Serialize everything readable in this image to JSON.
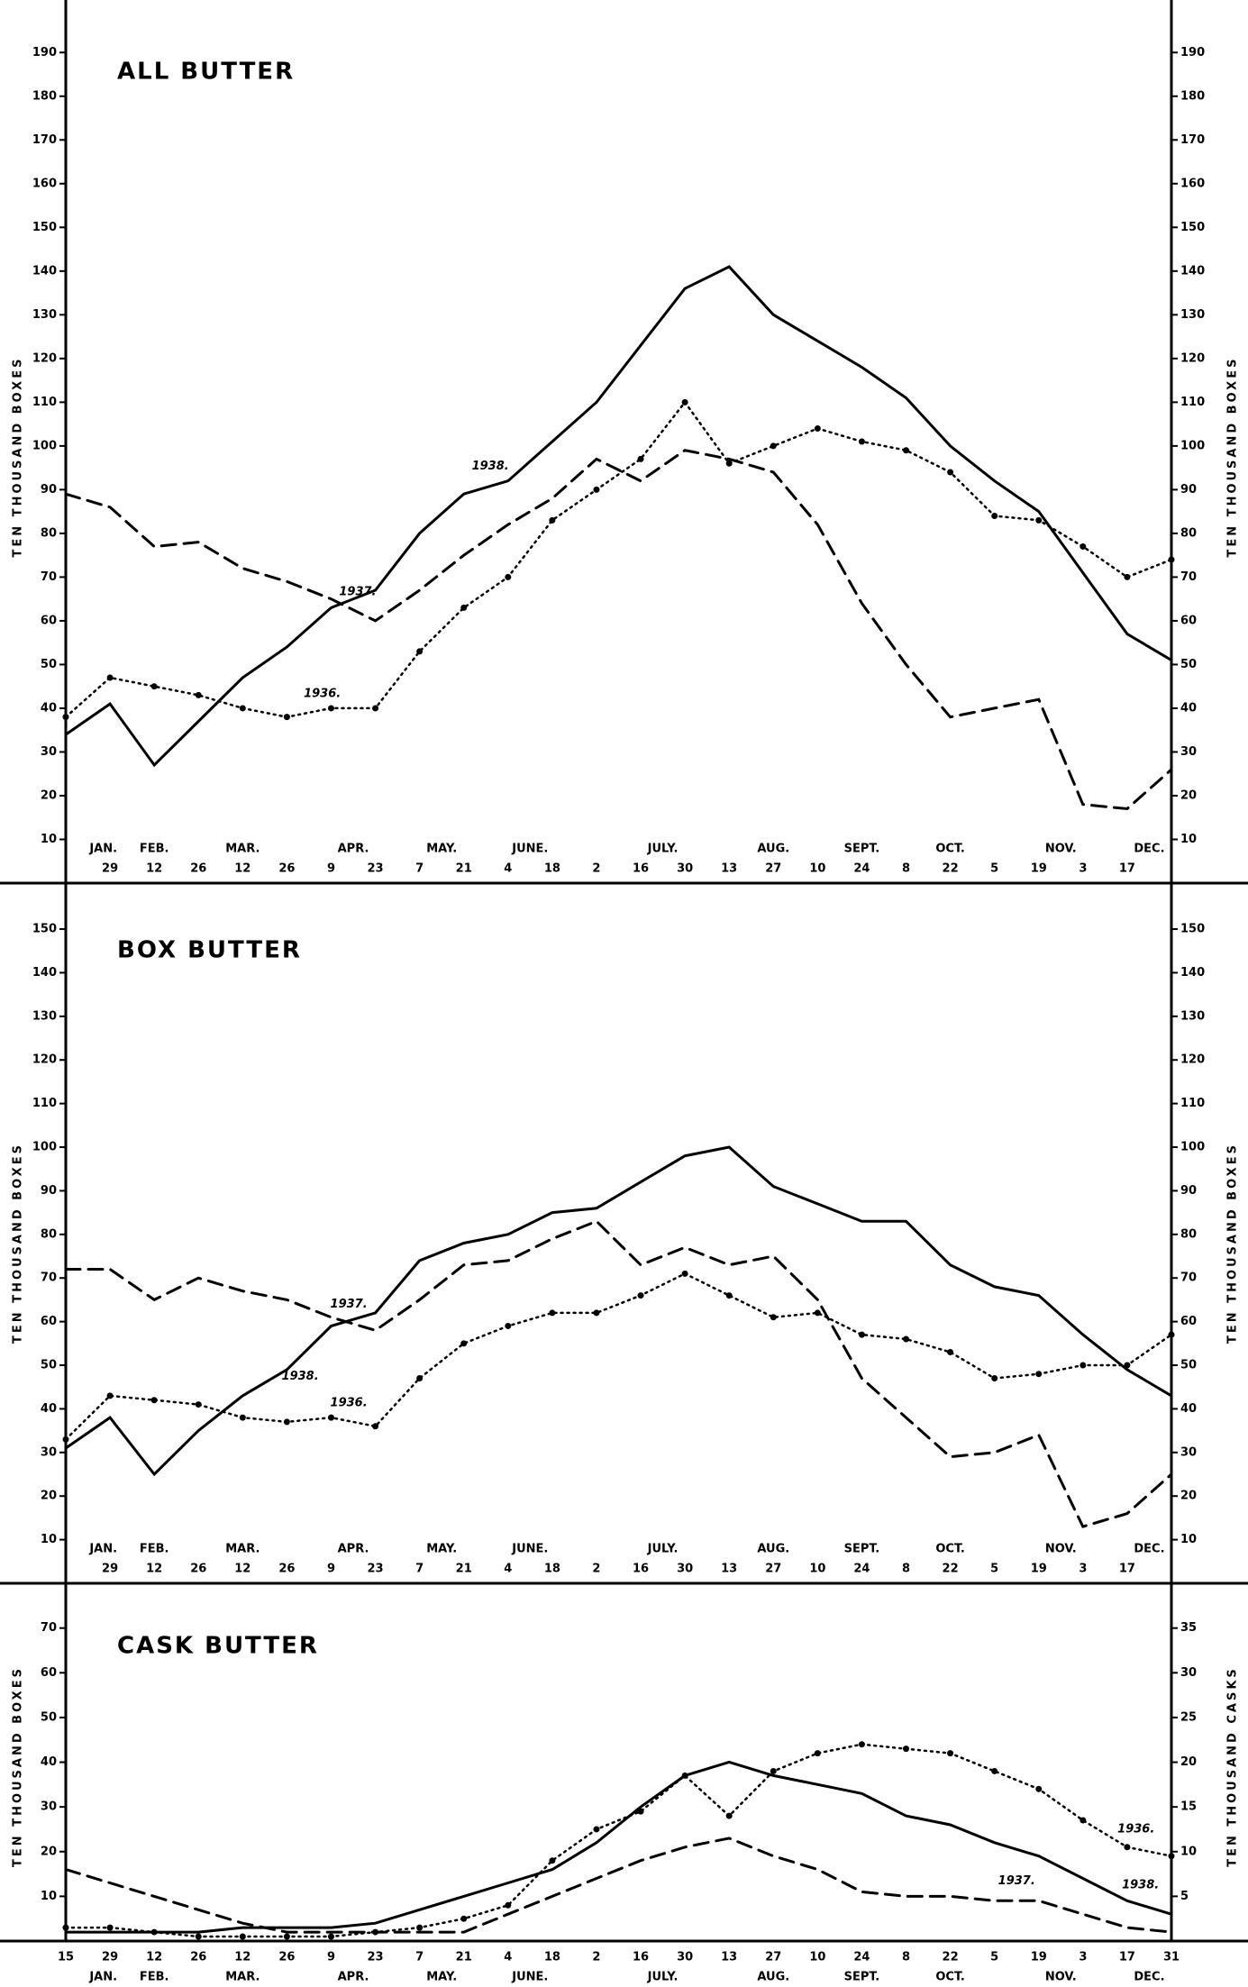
{
  "chart_data": [
    {
      "type": "line",
      "title": "ALL BUTTER",
      "ylabel": "TEN THOUSAND BOXES",
      "y2label": "TEN THOUSAND BOXES",
      "categories": [
        null,
        "29",
        "12",
        "26",
        "12",
        "26",
        "9",
        "23",
        "7",
        "21",
        "4",
        "18",
        "2",
        "16",
        "30",
        "13",
        "27",
        "10",
        "24",
        "8",
        "22",
        "5",
        "19",
        "3",
        "17",
        null
      ],
      "months": [
        "JAN.",
        "FEB.",
        "MAR.",
        "APR.",
        "MAY.",
        "JUNE.",
        "JULY.",
        "AUG.",
        "SEPT.",
        "OCT.",
        "NOV.",
        "DEC."
      ],
      "ylim": [
        0,
        195
      ],
      "yticks": [
        10,
        20,
        30,
        40,
        50,
        60,
        70,
        80,
        90,
        100,
        110,
        120,
        130,
        140,
        150,
        160,
        170,
        180,
        190
      ],
      "y2lim": [
        0,
        195
      ],
      "y2ticks": [
        10,
        20,
        30,
        40,
        50,
        60,
        70,
        80,
        90,
        100,
        110,
        120,
        130,
        140,
        150,
        160,
        170,
        180,
        190
      ],
      "series": [
        {
          "name": "1938.",
          "color": "#000000",
          "line_style": "solid",
          "values": [
            34,
            41,
            27,
            37,
            47,
            54,
            63,
            67,
            80,
            89,
            92,
            101,
            110,
            123,
            136,
            141,
            130,
            124,
            118,
            111,
            100,
            92,
            85,
            71,
            57,
            51
          ]
        },
        {
          "name": "1937.",
          "color": "#000000",
          "line_style": "dashed",
          "values": [
            89,
            86,
            77,
            78,
            72,
            69,
            65,
            60,
            67,
            75,
            82,
            88,
            97,
            92,
            99,
            97,
            94,
            82,
            64,
            50,
            38,
            40,
            42,
            18,
            17,
            26
          ]
        },
        {
          "name": "1936.",
          "color": "#000000",
          "line_style": "dotted",
          "values": [
            38,
            47,
            45,
            43,
            40,
            38,
            40,
            40,
            53,
            63,
            70,
            83,
            90,
            97,
            110,
            96,
            100,
            104,
            101,
            99,
            94,
            84,
            83,
            77,
            70,
            74
          ]
        }
      ]
    },
    {
      "type": "line",
      "title": "BOX BUTTER",
      "ylabel": "TEN THOUSAND BOXES",
      "y2label": "TEN THOUSAND BOXES",
      "categories": [
        null,
        "29",
        "12",
        "26",
        "12",
        "26",
        "9",
        "23",
        "7",
        "21",
        "4",
        "18",
        "2",
        "16",
        "30",
        "13",
        "27",
        "10",
        "24",
        "8",
        "22",
        "5",
        "19",
        "3",
        "17",
        null
      ],
      "months": [
        "JAN.",
        "FEB.",
        "MAR.",
        "APR.",
        "MAY.",
        "JUNE.",
        "JULY.",
        "AUG.",
        "SEPT.",
        "OCT.",
        "NOV.",
        "DEC."
      ],
      "ylim": [
        0,
        156
      ],
      "yticks": [
        10,
        20,
        30,
        40,
        50,
        60,
        70,
        80,
        90,
        100,
        110,
        120,
        130,
        140,
        150
      ],
      "y2lim": [
        0,
        156
      ],
      "y2ticks": [
        10,
        20,
        30,
        40,
        50,
        60,
        70,
        80,
        90,
        100,
        110,
        120,
        130,
        140,
        150
      ],
      "series": [
        {
          "name": "1938.",
          "color": "#000000",
          "line_style": "solid",
          "values": [
            31,
            38,
            25,
            35,
            43,
            49,
            59,
            62,
            74,
            78,
            80,
            85,
            86,
            92,
            98,
            100,
            91,
            87,
            83,
            83,
            73,
            68,
            66,
            57,
            49,
            43
          ]
        },
        {
          "name": "1937.",
          "color": "#000000",
          "line_style": "dashed",
          "values": [
            72,
            72,
            65,
            70,
            67,
            65,
            61,
            58,
            65,
            73,
            74,
            79,
            83,
            73,
            77,
            73,
            75,
            65,
            47,
            38,
            29,
            30,
            34,
            13,
            16,
            25
          ]
        },
        {
          "name": "1936.",
          "color": "#000000",
          "line_style": "dotted",
          "values": [
            33,
            43,
            42,
            41,
            38,
            37,
            38,
            36,
            47,
            55,
            59,
            62,
            62,
            66,
            71,
            66,
            61,
            62,
            57,
            56,
            53,
            47,
            48,
            50,
            50,
            57
          ]
        }
      ]
    },
    {
      "type": "line",
      "title": "CASK BUTTER",
      "ylabel": "TEN THOUSAND BOXES",
      "y2label": "TEN THOUSAND CASKS",
      "categories": [
        "15",
        "29",
        "12",
        "26",
        "12",
        "26",
        "9",
        "23",
        "7",
        "21",
        "4",
        "18",
        "2",
        "16",
        "30",
        "13",
        "27",
        "10",
        "24",
        "8",
        "22",
        "5",
        "19",
        "3",
        "17",
        "31"
      ],
      "months": [
        "JAN.",
        "FEB.",
        "MAR.",
        "APR.",
        "MAY.",
        "JUNE.",
        "JULY.",
        "AUG.",
        "SEPT.",
        "OCT.",
        "NOV.",
        "DEC."
      ],
      "ylim": [
        0,
        78
      ],
      "yticks": [
        10,
        20,
        30,
        40,
        50,
        60,
        70
      ],
      "y2lim": [
        0,
        39
      ],
      "y2ticks": [
        5,
        10,
        15,
        20,
        25,
        30,
        35
      ],
      "series": [
        {
          "name": "1938.",
          "color": "#000000",
          "line_style": "solid",
          "values": [
            2,
            2,
            2,
            2,
            3,
            3,
            3,
            4,
            7,
            10,
            13,
            16,
            22,
            30,
            37,
            40,
            37,
            35,
            33,
            28,
            26,
            22,
            19,
            14,
            9,
            6
          ]
        },
        {
          "name": "1937.",
          "color": "#000000",
          "line_style": "dashed",
          "values": [
            16,
            13,
            10,
            7,
            4,
            2,
            2,
            2,
            2,
            2,
            6,
            10,
            14,
            18,
            21,
            23,
            19,
            16,
            11,
            10,
            10,
            9,
            9,
            6,
            3,
            2
          ]
        },
        {
          "name": "1936.",
          "color": "#000000",
          "line_style": "dotted",
          "values": [
            3,
            3,
            2,
            1,
            1,
            1,
            1,
            2,
            3,
            5,
            8,
            18,
            25,
            29,
            37,
            28,
            38,
            42,
            44,
            43,
            42,
            38,
            34,
            27,
            21,
            19
          ]
        }
      ]
    }
  ]
}
